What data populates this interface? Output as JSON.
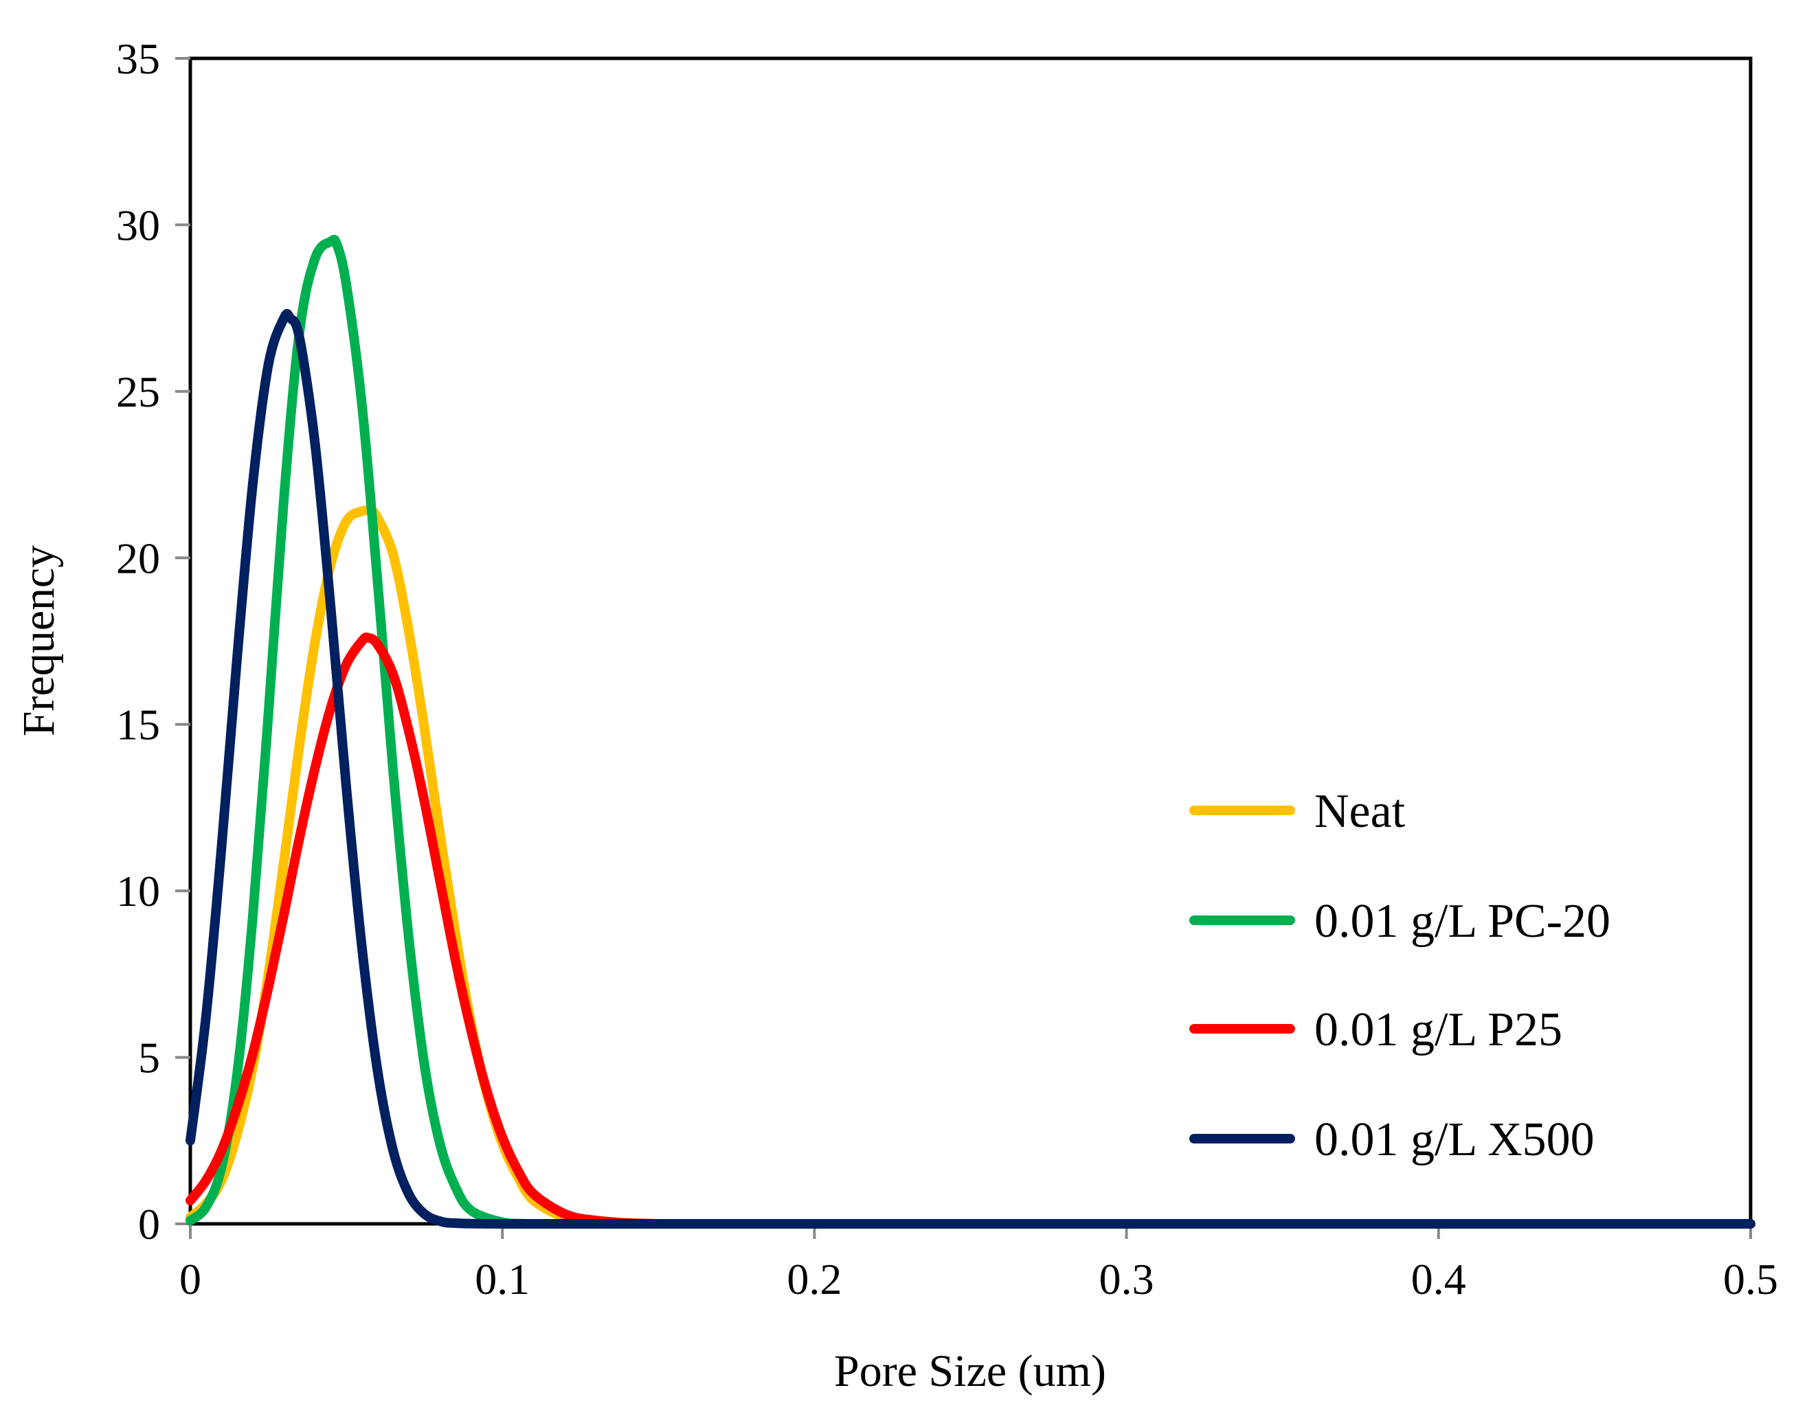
{
  "chart_data": {
    "type": "line",
    "title": "",
    "xlabel": "Pore Size (um)",
    "ylabel": "Frequency",
    "xlim": [
      0,
      0.5
    ],
    "ylim": [
      0,
      35
    ],
    "x_ticks": [
      0,
      0.1,
      0.2,
      0.3,
      0.4,
      0.5
    ],
    "x_tick_labels": [
      "0",
      "0.1",
      "0.2",
      "0.3",
      "0.4",
      "0.5"
    ],
    "y_ticks": [
      0,
      5,
      10,
      15,
      20,
      25,
      30,
      35
    ],
    "y_tick_labels": [
      "0",
      "5",
      "10",
      "15",
      "20",
      "25",
      "30",
      "35"
    ],
    "grid": false,
    "legend_position": "right",
    "series": [
      {
        "name": "Neat",
        "color": "#FFC000",
        "x": [
          0,
          0.005,
          0.01,
          0.015,
          0.02,
          0.025,
          0.03,
          0.035,
          0.04,
          0.045,
          0.05,
          0.055,
          0.058,
          0.06,
          0.065,
          0.07,
          0.075,
          0.08,
          0.085,
          0.09,
          0.095,
          0.1,
          0.105,
          0.11,
          0.12,
          0.13,
          0.15,
          0.2,
          0.3,
          0.4,
          0.5
        ],
        "values": [
          0.2,
          0.6,
          1.3,
          2.7,
          4.7,
          7.5,
          10.9,
          14.4,
          17.5,
          19.8,
          21.1,
          21.4,
          21.4,
          21.2,
          20.1,
          17.8,
          14.9,
          11.7,
          8.7,
          6.0,
          3.9,
          2.4,
          1.4,
          0.7,
          0.2,
          0.05,
          0,
          0,
          0,
          0,
          0
        ]
      },
      {
        "name": "0.01 g/L PC-20",
        "color": "#00B050",
        "x": [
          0,
          0.005,
          0.01,
          0.015,
          0.02,
          0.025,
          0.03,
          0.035,
          0.04,
          0.045,
          0.047,
          0.05,
          0.055,
          0.06,
          0.065,
          0.07,
          0.075,
          0.08,
          0.085,
          0.09,
          0.1,
          0.11,
          0.15,
          0.2,
          0.3,
          0.4,
          0.5
        ],
        "values": [
          0.1,
          0.5,
          1.7,
          4.5,
          9.2,
          15.3,
          21.8,
          26.8,
          29.0,
          29.5,
          29.4,
          28.2,
          24.6,
          19.3,
          13.6,
          8.6,
          4.8,
          2.4,
          1.1,
          0.4,
          0.05,
          0,
          0,
          0,
          0,
          0,
          0
        ]
      },
      {
        "name": "0.01 g/L P25",
        "color": "#FF0000",
        "x": [
          0,
          0.005,
          0.01,
          0.015,
          0.02,
          0.025,
          0.03,
          0.035,
          0.04,
          0.045,
          0.05,
          0.055,
          0.057,
          0.06,
          0.065,
          0.07,
          0.075,
          0.08,
          0.085,
          0.09,
          0.095,
          0.1,
          0.105,
          0.11,
          0.12,
          0.13,
          0.15,
          0.2,
          0.3,
          0.4,
          0.5
        ],
        "values": [
          0.7,
          1.3,
          2.2,
          3.5,
          5.1,
          7.1,
          9.3,
          11.6,
          13.7,
          15.5,
          16.8,
          17.5,
          17.6,
          17.4,
          16.5,
          14.8,
          12.7,
          10.3,
          7.9,
          5.8,
          4.0,
          2.6,
          1.6,
          0.9,
          0.3,
          0.1,
          0,
          0,
          0,
          0,
          0
        ]
      },
      {
        "name": "0.01 g/L X500",
        "color": "#002060",
        "x": [
          0,
          0.005,
          0.01,
          0.015,
          0.02,
          0.025,
          0.03,
          0.032,
          0.035,
          0.04,
          0.045,
          0.05,
          0.055,
          0.06,
          0.065,
          0.07,
          0.075,
          0.08,
          0.085,
          0.1,
          0.15,
          0.2,
          0.3,
          0.4,
          0.5
        ],
        "values": [
          2.5,
          6.2,
          11.3,
          17.0,
          22.2,
          25.8,
          27.2,
          27.2,
          26.6,
          23.4,
          18.5,
          13.1,
          8.3,
          4.6,
          2.2,
          0.9,
          0.3,
          0.08,
          0.02,
          0,
          0,
          0,
          0,
          0,
          0
        ]
      }
    ]
  }
}
